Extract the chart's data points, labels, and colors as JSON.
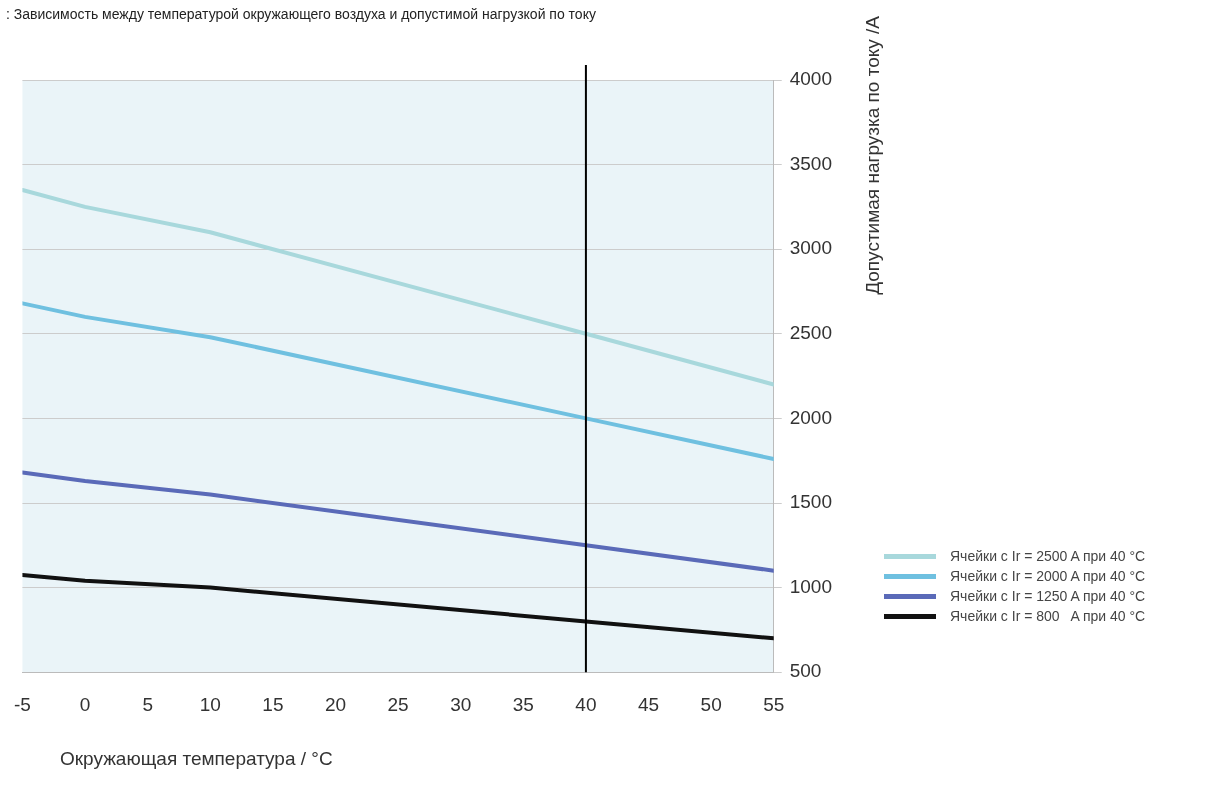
{
  "chart_data": {
    "type": "line",
    "title": ":  Зависимость между температурой окружающего воздуха и допустимой нагрузкой по току",
    "xlabel": "Окружающая температура / °C",
    "ylabel": "Допустимая нагрузка по току /A",
    "x": [
      -5,
      0,
      10,
      40,
      55
    ],
    "series": [
      {
        "name": "Ячейки с Ir = 2500 A при 40 °C",
        "color": "#a8d8dc",
        "values": [
          3350,
          3250,
          3100,
          2500,
          2200
        ]
      },
      {
        "name": "Ячейки с Ir = 2000 A при 40 °C",
        "color": "#6fc0e0",
        "values": [
          2680,
          2600,
          2480,
          2000,
          1760
        ]
      },
      {
        "name": "Ячейки с Ir = 1250 A при 40 °C",
        "color": "#5a6ab8",
        "values": [
          1680,
          1630,
          1550,
          1250,
          1100
        ]
      },
      {
        "name": "Ячейки с Ir = 800   A при 40 °C",
        "color": "#111111",
        "values": [
          1075,
          1040,
          1000,
          800,
          700
        ]
      }
    ],
    "xlim": [
      -5,
      55
    ],
    "xticks": [
      -5,
      0,
      5,
      10,
      15,
      20,
      25,
      30,
      35,
      40,
      45,
      50,
      55
    ],
    "ylim": [
      500,
      4000
    ],
    "yticks": [
      500,
      1000,
      1500,
      2000,
      2500,
      3000,
      3500,
      4000
    ],
    "ref_lines": [
      {
        "axis": "x",
        "value": 40,
        "color": "#000000"
      }
    ],
    "grid": "y",
    "legend": "right",
    "marker": "none",
    "line_style": "solid"
  }
}
